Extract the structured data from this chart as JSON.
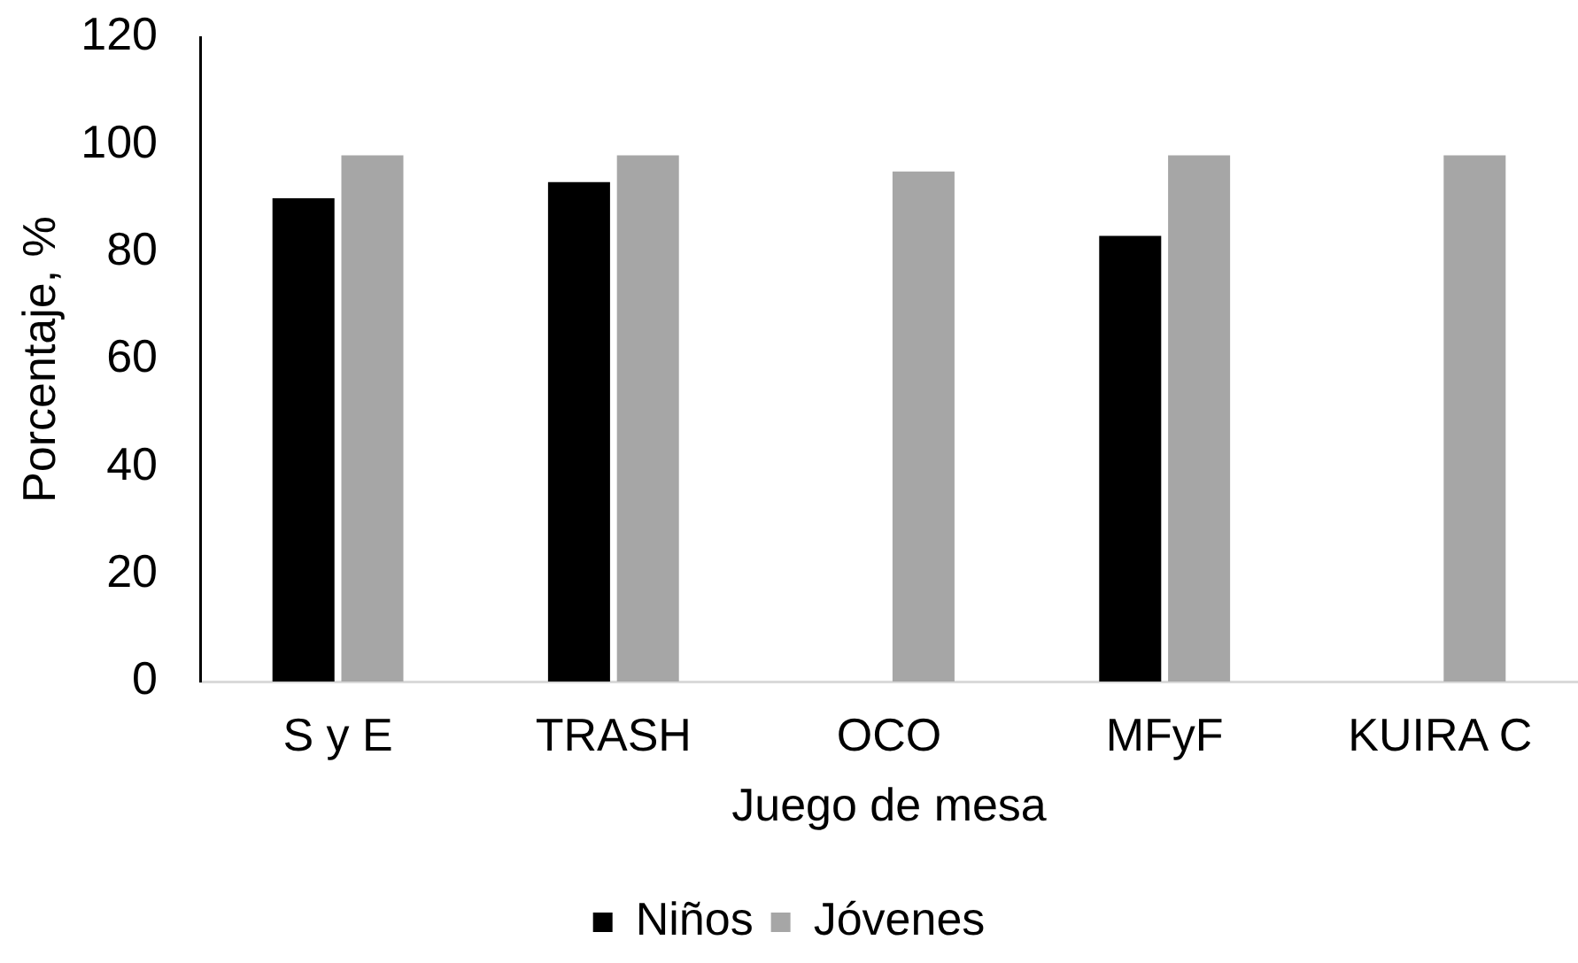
{
  "chart_data": {
    "type": "bar",
    "xlabel": "Juego de mesa",
    "ylabel": "Porcentaje, %",
    "categories": [
      "S y E",
      "TRASH",
      "OCO",
      "MFyF",
      "KUIRA C"
    ],
    "series": [
      {
        "name": "Niños",
        "color": "#000000",
        "values": [
          90,
          93,
          null,
          83,
          null
        ]
      },
      {
        "name": "Jóvenes",
        "color": "#a6a6a6",
        "values": [
          98,
          98,
          95,
          98,
          98
        ]
      }
    ],
    "ylim": [
      0,
      120
    ],
    "yticks": [
      0,
      20,
      40,
      60,
      80,
      100,
      120
    ],
    "grid": false,
    "legend": "bottom"
  }
}
